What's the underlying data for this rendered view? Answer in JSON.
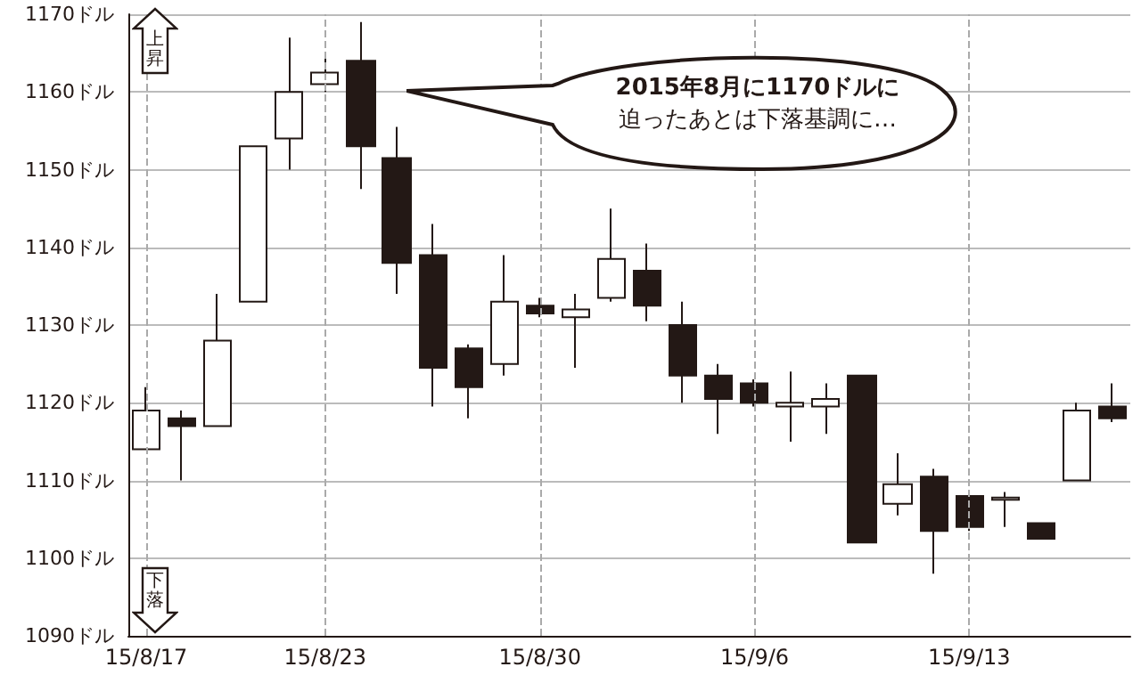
{
  "chart_data": {
    "type": "candlestick",
    "categories": [
      "15/8/17",
      null,
      null,
      null,
      null,
      "15/8/23",
      null,
      null,
      null,
      null,
      null,
      "15/8/30",
      null,
      null,
      null,
      null,
      null,
      "15/9/6",
      null,
      null,
      null,
      null,
      null,
      "15/9/13",
      null,
      null,
      null,
      null
    ],
    "ohlc": [
      [
        1114,
        1122,
        1114,
        1119
      ],
      [
        1118,
        1119,
        1110,
        1117
      ],
      [
        1117,
        1134,
        1117,
        1128
      ],
      [
        1133,
        1153,
        1133,
        1153
      ],
      [
        1154,
        1167,
        1150,
        1160
      ],
      [
        1161,
        1165,
        1160,
        1162.5
      ],
      [
        1164,
        1169,
        1147.5,
        1153
      ],
      [
        1151.5,
        1155.5,
        1134,
        1138
      ],
      [
        1139,
        1143,
        1119.5,
        1124.5
      ],
      [
        1127,
        1127.5,
        1118,
        1122
      ],
      [
        1125,
        1139,
        1123.5,
        1133
      ],
      [
        1132.5,
        1133.5,
        1131,
        1131.5
      ],
      [
        1131,
        1134,
        1124.5,
        1132
      ],
      [
        1133.5,
        1145,
        1133,
        1138.5
      ],
      [
        1137,
        1140.5,
        1130.5,
        1132.5
      ],
      [
        1130,
        1133,
        1120,
        1123.5
      ],
      [
        1123.5,
        1125,
        1116,
        1120.5
      ],
      [
        1122.5,
        1123,
        1119.5,
        1120
      ],
      [
        1119.5,
        1124,
        1115,
        1120
      ],
      [
        1119.5,
        1122.5,
        1116,
        1120.5
      ],
      [
        1123.5,
        1123.5,
        1102,
        1102
      ],
      [
        1107,
        1113.5,
        1105.5,
        1109.5
      ],
      [
        1110.5,
        1111.5,
        1098,
        1103.5
      ],
      [
        1108,
        1108,
        1103.5,
        1104
      ],
      [
        1107.5,
        1108.5,
        1104,
        1107.8
      ],
      [
        1104.5,
        1104.5,
        1102.5,
        1102.5
      ],
      [
        1110,
        1120,
        1110,
        1119
      ],
      [
        1119.5,
        1122.5,
        1117.5,
        1118
      ]
    ],
    "ylim": [
      1090,
      1170
    ],
    "yticks": [
      {
        "value": 1090,
        "label": "1090ドル"
      },
      {
        "value": 1100,
        "label": "1100ドル"
      },
      {
        "value": 1110,
        "label": "1110ドル"
      },
      {
        "value": 1120,
        "label": "1120ドル"
      },
      {
        "value": 1130,
        "label": "1130ドル"
      },
      {
        "value": 1140,
        "label": "1140ドル"
      },
      {
        "value": 1150,
        "label": "1150ドル"
      },
      {
        "value": 1160,
        "label": "1160ドル"
      },
      {
        "value": 1170,
        "label": "1170ドル"
      }
    ],
    "grid": true,
    "annotations": [
      "上昇",
      "下落",
      "2015年8月に1170ドルに",
      "迫ったあとは下落基調に…"
    ]
  }
}
